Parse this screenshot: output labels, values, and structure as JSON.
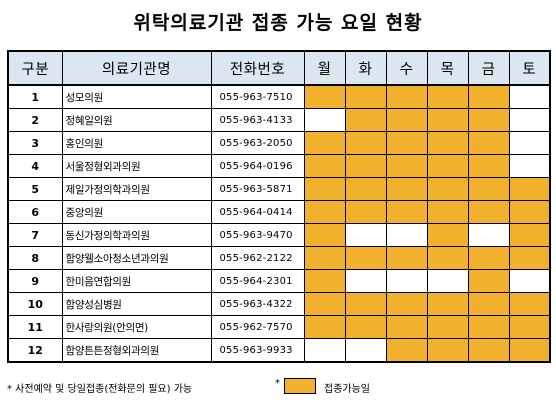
{
  "title": "위탁의료기관 접종 가능 요일 현황",
  "table": {
    "headers": {
      "no": "구분",
      "name": "의료기관명",
      "phone": "전화번호",
      "days": [
        "월",
        "화",
        "수",
        "목",
        "금",
        "토"
      ]
    },
    "rows": [
      {
        "no": "1",
        "name": "성모의원",
        "phone": "055-963-7510",
        "days": [
          true,
          true,
          true,
          true,
          true,
          false
        ]
      },
      {
        "no": "2",
        "name": "정혜일의원",
        "phone": "055-963-4133",
        "days": [
          false,
          true,
          true,
          true,
          true,
          false
        ]
      },
      {
        "no": "3",
        "name": "홍인의원",
        "phone": "055-963-2050",
        "days": [
          true,
          true,
          true,
          true,
          true,
          false
        ]
      },
      {
        "no": "4",
        "name": "서울정형외과의원",
        "phone": "055-964-0196",
        "days": [
          true,
          true,
          true,
          true,
          true,
          false
        ]
      },
      {
        "no": "5",
        "name": "제일가정의학과의원",
        "phone": "055-963-5871",
        "days": [
          true,
          true,
          true,
          true,
          true,
          true
        ]
      },
      {
        "no": "6",
        "name": "중앙의원",
        "phone": "055-964-0414",
        "days": [
          true,
          true,
          true,
          true,
          true,
          true
        ]
      },
      {
        "no": "7",
        "name": "동신가정의학과의원",
        "phone": "055-963-9470",
        "days": [
          true,
          false,
          false,
          true,
          false,
          true
        ]
      },
      {
        "no": "8",
        "name": "함양웰소아청소년과의원",
        "phone": "055-962-2122",
        "days": [
          true,
          true,
          true,
          true,
          true,
          true
        ]
      },
      {
        "no": "9",
        "name": "한미음연합의원",
        "phone": "055-964-2301",
        "days": [
          true,
          false,
          false,
          false,
          true,
          false
        ]
      },
      {
        "no": "10",
        "name": "함양성심병원",
        "phone": "055-963-4322",
        "days": [
          true,
          true,
          true,
          true,
          true,
          true
        ]
      },
      {
        "no": "11",
        "name": "한사랑의원(안의면)",
        "phone": "055-962-7570",
        "days": [
          true,
          true,
          true,
          true,
          true,
          true
        ]
      },
      {
        "no": "12",
        "name": "함양튼튼정형외과의원",
        "phone": "055-963-9933",
        "days": [
          false,
          false,
          true,
          true,
          true,
          true
        ]
      }
    ]
  },
  "footnote": {
    "note": "* 사전예약 및 당일접종(전화문의 필요) 가능",
    "legend_marker": "*",
    "legend_label": "접종가능일"
  },
  "colors": {
    "available": "#f1b12c",
    "header_bg": "#dce6f1"
  }
}
